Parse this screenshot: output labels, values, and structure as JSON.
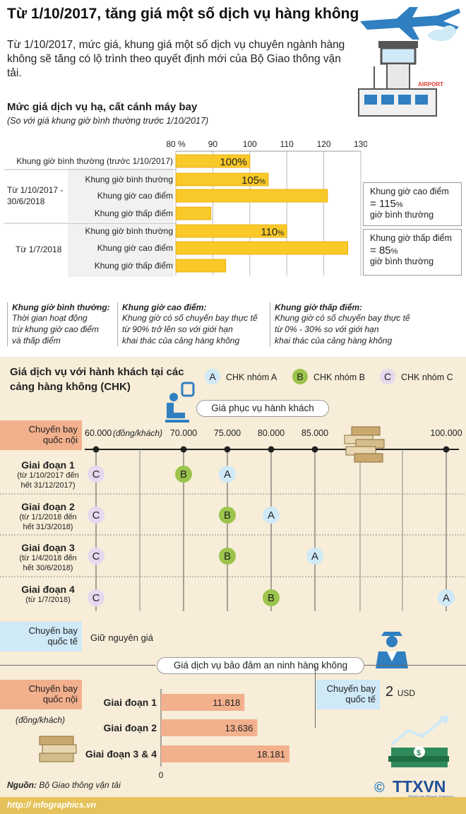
{
  "title": "Từ 1/10/2017, tăng giá một số dịch vụ hàng không",
  "intro": "Từ 1/10/2017, mức giá, khung giá một số dịch vụ chuyên ngành hàng không sẽ tăng có lộ trình theo quyết định mới của Bộ Giao thông vận tải.",
  "airport_sign": "AIRPORT",
  "section1": {
    "title": "Mức giá dịch vụ hạ, cất cánh máy bay",
    "subtitle": "(So với giá khung giờ bình thường trước 1/10/2017)",
    "group1_label": "Từ 1/10/2017 - 30/6/2018",
    "group2_label": "Từ 1/7/2018",
    "callouts": [
      {
        "head": "Khung giờ cao điểm",
        "eq": "=",
        "value": "115",
        "unit": "%",
        "tail": "giờ bình thường"
      },
      {
        "head": "Khung giờ thấp điểm",
        "eq": "=",
        "value": "85",
        "unit": "%",
        "tail": "giờ bình thường"
      }
    ]
  },
  "chart_data": [
    {
      "type": "bar",
      "orientation": "horizontal",
      "title": "Mức giá dịch vụ hạ, cất cánh máy bay",
      "subtitle": "(So với giá khung giờ bình thường trước 1/10/2017)",
      "tick_labels": [
        "80 %",
        "90",
        "100",
        "110",
        "120",
        "130"
      ],
      "xlim": [
        80,
        130
      ],
      "categories": [
        "Khung giờ bình thường (trước 1/10/2017)",
        "Khung giờ bình thường",
        "Khung giờ cao điểm",
        "Khung giờ thấp điểm",
        "Khung giờ bình thường",
        "Khung giờ cao điểm",
        "Khung giờ thấp điểm"
      ],
      "values": [
        100,
        105,
        121,
        89.5,
        110,
        126.5,
        93.5
      ],
      "data_labels": [
        "100%",
        "105",
        "",
        "",
        "110",
        "",
        ""
      ],
      "data_label_units": [
        "",
        "%",
        "",
        "",
        "%",
        "",
        ""
      ],
      "bar_color": "#f9c929"
    },
    {
      "type": "scatter",
      "title": "Giá phục vụ hành khách",
      "x_unit": "(đồng/khách)",
      "ticks": [
        60000,
        70000,
        75000,
        80000,
        85000,
        100000
      ],
      "tick_labels": [
        "60.000",
        "70.000",
        "75.000",
        "80.000",
        "85.000",
        "100.000"
      ],
      "rows": [
        {
          "phase": "Giai đoạn 1",
          "sub": [
            "(từ 1/10/2017 đến",
            "hết 31/12/2017)"
          ],
          "points": [
            {
              "group": "C",
              "x": 60000
            },
            {
              "group": "B",
              "x": 70000
            },
            {
              "group": "A",
              "x": 75000
            }
          ]
        },
        {
          "phase": "Giai đoạn 2",
          "sub": [
            "(từ 1/1/2018 đến",
            "hết 31/3/2018)"
          ],
          "points": [
            {
              "group": "C",
              "x": 60000
            },
            {
              "group": "B",
              "x": 75000
            },
            {
              "group": "A",
              "x": 80000
            }
          ]
        },
        {
          "phase": "Giai đoạn 3",
          "sub": [
            "(từ 1/4/2018 đến",
            "hết 30/6/2018)"
          ],
          "points": [
            {
              "group": "C",
              "x": 60000
            },
            {
              "group": "B",
              "x": 75000
            },
            {
              "group": "A",
              "x": 85000
            }
          ]
        },
        {
          "phase": "Giai đoạn 4",
          "sub": [
            "(từ 1/7/2018)"
          ],
          "points": [
            {
              "group": "C",
              "x": 60000
            },
            {
              "group": "B",
              "x": 80000
            },
            {
              "group": "A",
              "x": 100000
            }
          ]
        }
      ]
    },
    {
      "type": "bar",
      "orientation": "horizontal",
      "title": "Giá dịch vụ bảo đảm an ninh hàng không",
      "categories": [
        "Giai đoạn 1",
        "Giai đoạn 2",
        "Giai đoạn 3 & 4"
      ],
      "values": [
        11818,
        13636,
        18181
      ],
      "data_labels": [
        "11.818",
        "13.636",
        "18.181"
      ],
      "axis_zero_label": "0",
      "bar_color": "#f2b08d"
    }
  ],
  "section2": {
    "title_line1": "Giá dịch vụ với hành khách tại các",
    "title_line2": "cảng hàng không (CHK)",
    "legend": [
      {
        "letter": "A",
        "label": "CHK nhóm A",
        "color": "#cfe9f7"
      },
      {
        "letter": "B",
        "label": "CHK nhóm B",
        "color": "#9ac44b"
      },
      {
        "letter": "C",
        "label": "CHK nhóm C",
        "color": "#e6d9ef"
      }
    ],
    "domestic_l1": "Chuyến bay",
    "domestic_l2": "quốc nội",
    "intl_l1": "Chuyến bay",
    "intl_l2": "quốc tế",
    "intl_note": "Giữ nguyên giá"
  },
  "security": {
    "title": "Giá dịch vụ bảo đảm an ninh hàng không",
    "domestic_l1": "Chuyến bay",
    "domestic_l2": "quốc nội",
    "unit": "(đồng/khách)",
    "intl_l1": "Chuyến bay",
    "intl_l2": "quốc tế",
    "intl_value": "2",
    "intl_unit": "USD"
  },
  "definitions": [
    {
      "head": "Khung giờ bình thường:",
      "lines": [
        "Thời gian hoạt động",
        "trừ khung giờ cao điểm",
        "và thấp điểm"
      ]
    },
    {
      "head": "Khung giờ cao điểm:",
      "lines": [
        "Khung giờ có số chuyến bay thực tế",
        "từ 90% trở lên so với giới hạn",
        "khai thác của cảng hàng không"
      ]
    },
    {
      "head": "Khung giờ thấp điểm:",
      "lines": [
        "Khung giờ có số chuyến bay thực tế",
        "từ 0% - 30% so với giới hạn",
        "khai thác của cảng hàng không"
      ]
    }
  ],
  "source_label": "Nguồn:",
  "source": "Bộ Giao thông vận tải",
  "footer_url": "http:// infographics.vn",
  "logo_symbol": "©",
  "logo_text": "TTXVN",
  "logo_sub": "Vietnam News Agency",
  "colors": {
    "yellow": "#f9c929",
    "salmon": "#f2b08d",
    "cream": "#f7edd8",
    "green": "#9ac44b",
    "blue": "#cfe9f7",
    "lavender": "#e6d9ef"
  }
}
